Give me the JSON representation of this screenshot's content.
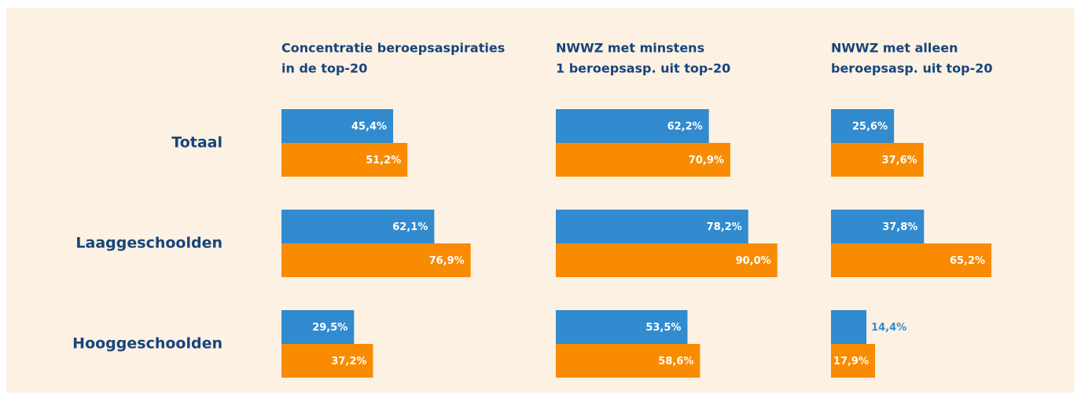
{
  "chart_data": [
    {
      "type": "bar",
      "title": [
        "Concentratie beroepsaspiraties",
        "in de top-20"
      ],
      "categories": [
        "Totaal",
        "Laaggeschoolden",
        "Hooggeschoolden"
      ],
      "xlim": [
        0,
        100
      ],
      "series": [
        {
          "color": "#318bce",
          "values": [
            45.4,
            62.1,
            29.5
          ],
          "value_labels": [
            "45,4%",
            "62,1%",
            "29,5%"
          ]
        },
        {
          "color": "#f98b00",
          "values": [
            51.2,
            76.9,
            37.2
          ],
          "value_labels": [
            "51,2%",
            "76,9%",
            "37,2%"
          ]
        }
      ]
    },
    {
      "type": "bar",
      "title": [
        "NWWZ met minstens",
        "1 beroepsasp. uit top-20"
      ],
      "xlim": [
        0,
        100
      ],
      "series": [
        {
          "color": "#318bce",
          "values": [
            62.2,
            78.2,
            53.5
          ],
          "value_labels": [
            "62,2%",
            "78,2%",
            "53,5%"
          ]
        },
        {
          "color": "#f98b00",
          "values": [
            70.9,
            90.0,
            58.6
          ],
          "value_labels": [
            "70,9%",
            "90,0%",
            "58,6%"
          ]
        }
      ]
    },
    {
      "type": "bar",
      "title": [
        "NWWZ met alleen",
        "beroepsasp. uit top-20"
      ],
      "xlim": [
        0,
        100
      ],
      "series": [
        {
          "color": "#318bce",
          "values": [
            25.6,
            37.8,
            14.4
          ],
          "value_labels": [
            "25,6%",
            "37,8%",
            "14,4%"
          ]
        },
        {
          "color": "#f98b00",
          "values": [
            37.6,
            65.2,
            17.9
          ],
          "value_labels": [
            "37,6%",
            "65,2%",
            "17,9%"
          ]
        }
      ]
    }
  ]
}
